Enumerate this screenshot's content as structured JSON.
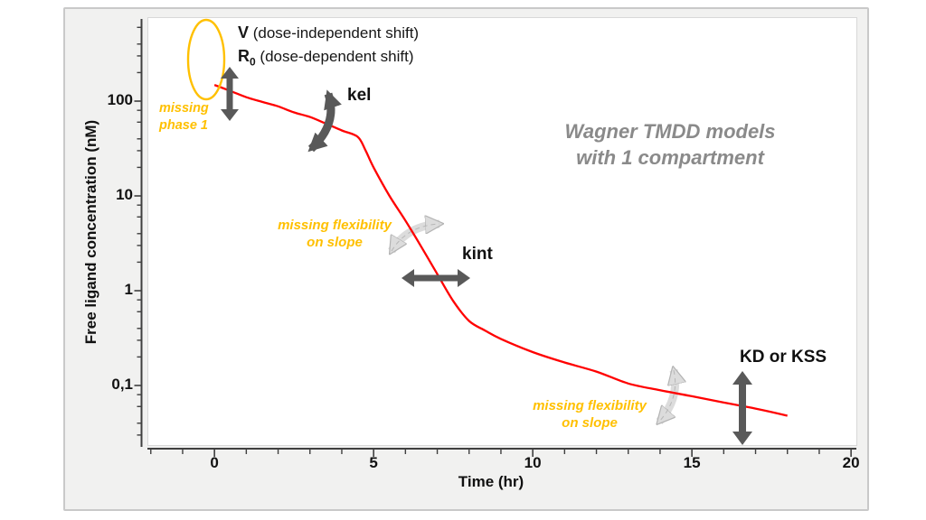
{
  "colors": {
    "curve_red": "#ff0000",
    "dark_arrow": "#595959",
    "light_arrow": "#dcdcdc",
    "light_arrow_edge": "#b3b3b3",
    "accent_yellow": "#ffc000",
    "title_gray": "#8a8a8a",
    "axis": "#3f3f3f",
    "panel_bg": "#f1f1f0",
    "panel_border": "#c9c9c9"
  },
  "chart_data": {
    "type": "line",
    "title": "Wagner TMDD models with 1 compartment",
    "xlabel": "Time (hr)",
    "ylabel": "Free ligand concentration (nM)",
    "grid": false,
    "legend": "none",
    "x_axis": {
      "lim": [
        -2.05,
        20.11
      ],
      "major_ticks": [
        0,
        5,
        10,
        15,
        20
      ],
      "tick_labels": [
        "0",
        "5",
        "10",
        "15",
        "20"
      ],
      "minor_tick_step": 1,
      "minor_tick_range": [
        -2,
        20
      ]
    },
    "y_axis": {
      "scale": "log",
      "lim": [
        0.023,
        769
      ],
      "major_ticks": [
        100,
        10,
        1,
        0.1
      ],
      "tick_labels": [
        "100",
        "10",
        "1",
        "0,1"
      ],
      "minor_multipliers": [
        2,
        3,
        4,
        6,
        8
      ]
    },
    "series": [
      {
        "name": "Free ligand concentration (Wagner TMDD simulation)",
        "color": "#ff0000",
        "x": [
          0,
          0.5,
          1,
          1.5,
          2,
          2.5,
          3,
          3.5,
          4,
          4.5,
          4.75,
          5,
          5.5,
          6,
          6.5,
          7,
          7.5,
          8,
          8.5,
          9,
          10,
          11,
          12,
          13,
          14,
          15,
          16,
          17,
          18
        ],
        "y": [
          148,
          128,
          110,
          98,
          88,
          76,
          68,
          58,
          49,
          42,
          30,
          20,
          10,
          5.5,
          2.9,
          1.5,
          0.78,
          0.48,
          0.38,
          0.31,
          0.225,
          0.175,
          0.14,
          0.105,
          0.089,
          0.077,
          0.066,
          0.057,
          0.048
        ]
      }
    ]
  },
  "annotations": {
    "v_line": {
      "term": "V",
      "desc": " (dose-independent shift)"
    },
    "r0_line": {
      "term": "R",
      "sub": "0",
      "desc": " (dose-dependent shift)"
    },
    "kel": "kel",
    "kint": "kint",
    "kd": "KD or KSS",
    "missing_phase": {
      "line1": "missing",
      "line2": "phase 1"
    },
    "flex1": {
      "line1": "missing flexibility",
      "line2": "on slope"
    },
    "flex2": {
      "line1": "missing flexibility",
      "line2": "on slope"
    },
    "title": {
      "line1": "Wagner TMDD models",
      "line2": "with 1 compartment"
    }
  }
}
